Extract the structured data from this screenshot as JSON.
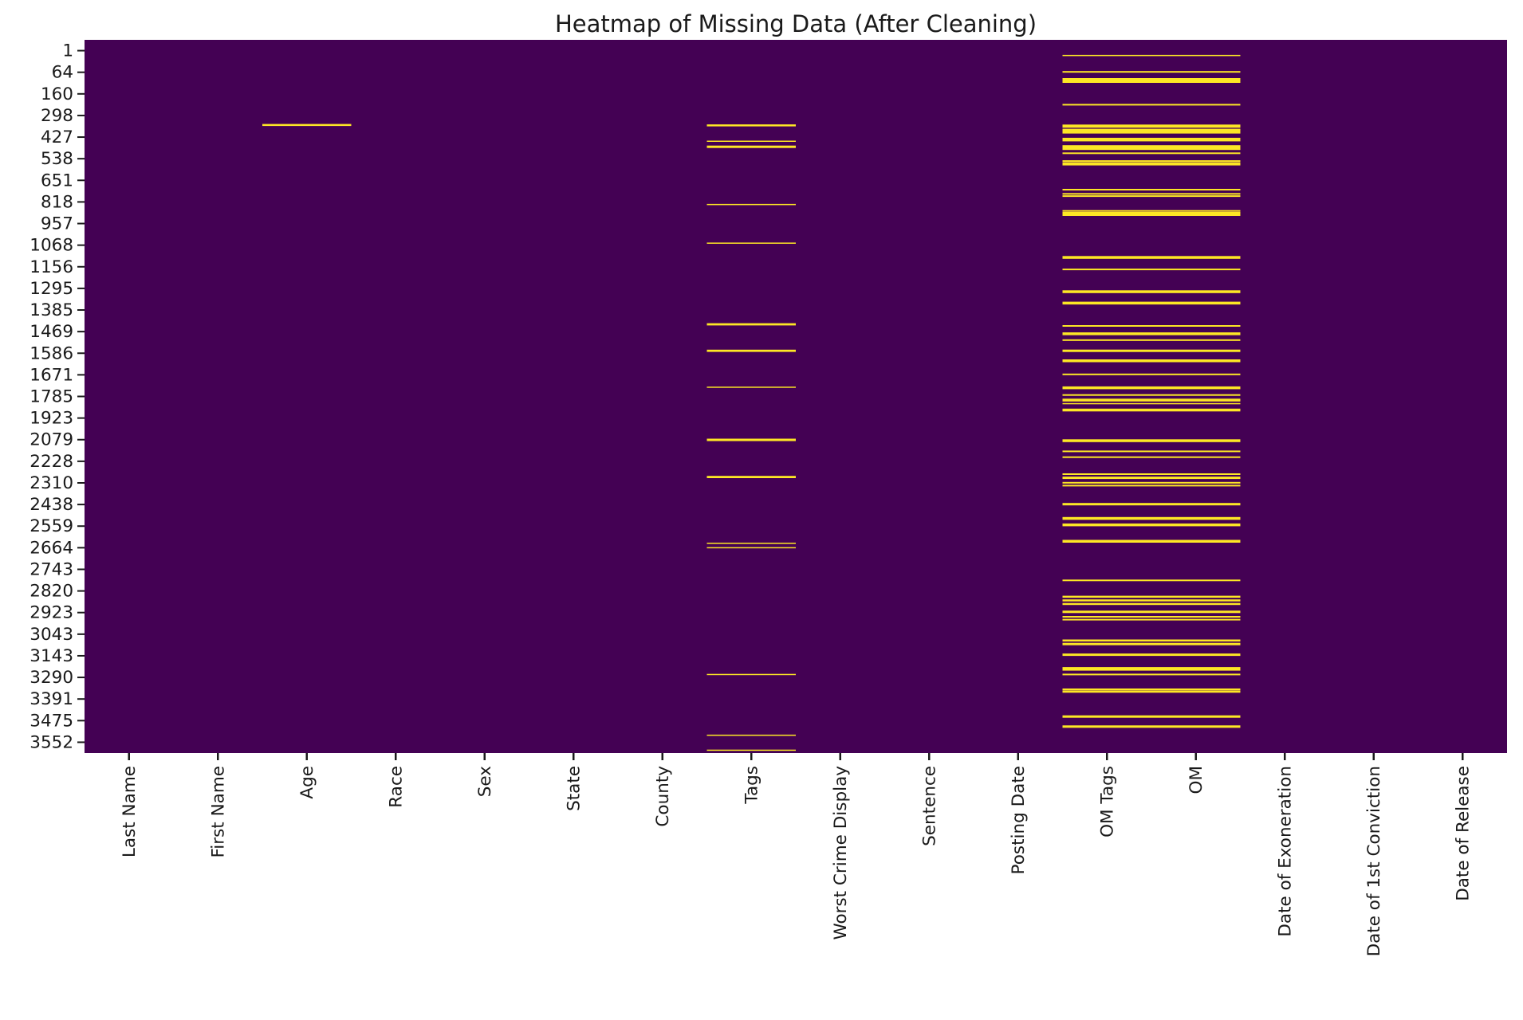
{
  "chart_data": {
    "type": "heatmap",
    "title": "Heatmap of Missing Data (After Cleaning)",
    "colormap": "viridis",
    "legend_position": "none",
    "grid": false,
    "colors": {
      "present": "#440154",
      "missing": "#FDE725",
      "text": "#1a1a1a",
      "tick": "#1a1a1a"
    },
    "columns": [
      "Last Name",
      "First Name",
      "Age",
      "Race",
      "Sex",
      "State",
      "County",
      "Tags",
      "Worst Crime Display",
      "Sentence",
      "Posting Date",
      "OM Tags",
      "OM",
      "Date of Exoneration",
      "Date of 1st Conviction",
      "Date of Release"
    ],
    "y_tick_labels": [
      "1",
      "64",
      "160",
      "298",
      "427",
      "538",
      "651",
      "818",
      "957",
      "1068",
      "1156",
      "1295",
      "1385",
      "1469",
      "1586",
      "1671",
      "1785",
      "1923",
      "2079",
      "2228",
      "2310",
      "2438",
      "2559",
      "2664",
      "2743",
      "2820",
      "2923",
      "3043",
      "3143",
      "3290",
      "3391",
      "3475",
      "3552"
    ],
    "row_axis_range": [
      0,
      3560
    ],
    "missing_blocks": [
      {
        "column": "Age",
        "col_start": 2,
        "col_end": 2,
        "rows": [
          [
            425,
            10
          ]
        ]
      },
      {
        "column": "Tags",
        "col_start": 7,
        "col_end": 7,
        "rows": [
          [
            427,
            10
          ],
          [
            506,
            6
          ],
          [
            534,
            12
          ],
          [
            822,
            6
          ],
          [
            1015,
            6
          ],
          [
            1420,
            11
          ],
          [
            1552,
            11
          ],
          [
            1734,
            6
          ],
          [
            1997,
            12
          ],
          [
            2182,
            11
          ],
          [
            2513,
            6
          ],
          [
            2535,
            6
          ],
          [
            3168,
            6
          ],
          [
            3471,
            6
          ],
          [
            3546,
            6
          ]
        ]
      },
      {
        "column": "OM Tags + OM",
        "col_start": 11,
        "col_end": 12,
        "rows": [
          [
            78,
            6
          ],
          [
            160,
            8
          ],
          [
            203,
            24
          ],
          [
            324,
            8
          ],
          [
            431,
            16
          ],
          [
            456,
            24
          ],
          [
            498,
            18
          ],
          [
            538,
            24
          ],
          [
            566,
            8
          ],
          [
            605,
            8
          ],
          [
            619,
            16
          ],
          [
            748,
            8
          ],
          [
            769,
            8
          ],
          [
            780,
            8
          ],
          [
            854,
            8
          ],
          [
            869,
            20
          ],
          [
            1086,
            14
          ],
          [
            1146,
            8
          ],
          [
            1257,
            14
          ],
          [
            1314,
            14
          ],
          [
            1428,
            8
          ],
          [
            1467,
            14
          ],
          [
            1499,
            8
          ],
          [
            1552,
            12
          ],
          [
            1602,
            14
          ],
          [
            1670,
            8
          ],
          [
            1737,
            14
          ],
          [
            1773,
            8
          ],
          [
            1798,
            14
          ],
          [
            1816,
            6
          ],
          [
            1848,
            14
          ],
          [
            2001,
            14
          ],
          [
            2054,
            8
          ],
          [
            2083,
            8
          ],
          [
            2168,
            8
          ],
          [
            2186,
            12
          ],
          [
            2211,
            8
          ],
          [
            2225,
            8
          ],
          [
            2318,
            12
          ],
          [
            2389,
            14
          ],
          [
            2421,
            14
          ],
          [
            2503,
            14
          ],
          [
            2698,
            8
          ],
          [
            2780,
            10
          ],
          [
            2798,
            10
          ],
          [
            2816,
            10
          ],
          [
            2855,
            12
          ],
          [
            2880,
            8
          ],
          [
            2894,
            8
          ],
          [
            2998,
            10
          ],
          [
            3016,
            12
          ],
          [
            3069,
            12
          ],
          [
            3140,
            18
          ],
          [
            3168,
            8
          ],
          [
            3243,
            10
          ],
          [
            3254,
            10
          ],
          [
            3378,
            12
          ],
          [
            3428,
            12
          ]
        ]
      }
    ]
  }
}
